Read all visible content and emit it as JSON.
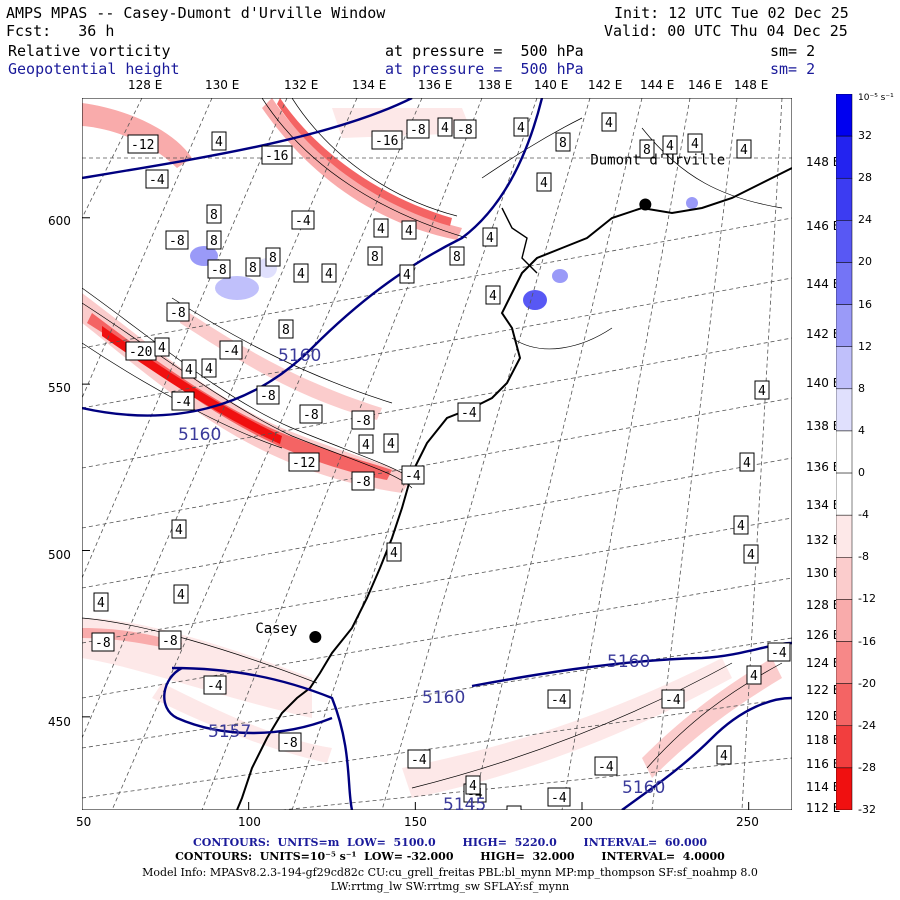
{
  "header": {
    "title": "AMPS MPAS -- Casey-Dumont d'Urville Window",
    "init": "Init: 12 UTC Tue 02 Dec 25",
    "fcst": "Fcst:   36 h",
    "valid": "Valid: 00 UTC Thu 04 Dec 25",
    "field1": "Relative vorticity",
    "field1_level": "at pressure =  500 hPa",
    "field1_sm": "sm= 2",
    "field2": "Geopotential height",
    "field2_level": "at pressure =  500 hPa",
    "field2_sm": "sm= 2"
  },
  "top_longitudes": [
    "128 E",
    "130 E",
    "132 E",
    "134 E",
    "136 E",
    "138 E",
    "140 E",
    "142 E",
    "144 E",
    "146 E",
    "148 E"
  ],
  "right_longitudes": [
    "148 E",
    "146 E",
    "144 E",
    "142 E",
    "140 E",
    "138 E",
    "136 E",
    "134 E",
    "132 E",
    "130 E",
    "128 E",
    "126 E",
    "124 E",
    "122 E",
    "120 E",
    "118 E",
    "116 E",
    "114 E",
    "112 E"
  ],
  "x_axis": {
    "ticks": [
      "50",
      "100",
      "150",
      "200",
      "250"
    ],
    "values": [
      50,
      100,
      150,
      200,
      250
    ],
    "range": [
      50,
      263
    ]
  },
  "y_axis": {
    "ticks": [
      "600",
      "550",
      "500",
      "450"
    ],
    "values": [
      600,
      550,
      500,
      450
    ],
    "range": [
      422,
      636
    ]
  },
  "places": [
    {
      "name": "Casey",
      "x": 120,
      "y": 474
    },
    {
      "name": "Dumont d'Urville",
      "x": 219,
      "y": 604
    }
  ],
  "colorbar": {
    "unit": "10⁻⁵ s⁻¹",
    "labels": [
      "32",
      "28",
      "24",
      "20",
      "16",
      "12",
      "8",
      "4",
      "0",
      "-4",
      "-8",
      "-12",
      "-16",
      "-20",
      "-24",
      "-28",
      "-32"
    ],
    "colors": [
      "#0000f0",
      "#2323f0",
      "#3c3cf2",
      "#5858f4",
      "#7474f6",
      "#9a9af8",
      "#c0c0fb",
      "#e0e0fd",
      "#ffffff",
      "#ffffff",
      "#fde8e8",
      "#fbcccc",
      "#f9abab",
      "#f78888",
      "#f46464",
      "#f23e3e",
      "#f01010"
    ]
  },
  "height_labels": [
    "5160",
    "5160",
    "5160",
    "5160",
    "5160",
    "5157",
    "5145"
  ],
  "vort_labels": [
    "-12",
    "-16",
    "-16",
    "-8",
    "-8",
    "-4",
    "-4",
    "-8",
    "-8",
    "-20",
    "-8",
    "-4",
    "-8",
    "-8",
    "-8",
    "-12",
    "-8",
    "-4",
    "-4",
    "-4",
    "-8",
    "-8",
    "-4",
    "-8",
    "-4",
    "-4",
    "-4",
    "-4",
    "-4",
    "-4",
    "-4",
    "8",
    "8",
    "8",
    "8",
    "8",
    "8",
    "8",
    "8",
    "8",
    "4",
    "4",
    "4",
    "4",
    "4",
    "4",
    "4",
    "4",
    "4",
    "4",
    "4",
    "4",
    "4",
    "4",
    "4",
    "4",
    "4",
    "4",
    "4",
    "4",
    "4",
    "4",
    "4",
    "4",
    "4",
    "4",
    "4",
    "4",
    "4",
    "4",
    "4",
    "4"
  ],
  "footer": {
    "line1": "CONTOURS:  UNITS=m  LOW=  5100.0       HIGH=  5220.0       INTERVAL=  60.000",
    "line2": "CONTOURS:  UNITS=10⁻⁵ s⁻¹  LOW= -32.000       HIGH=  32.000       INTERVAL=  4.0000",
    "line3": "Model Info: MPASv8.2.3-194-gf29cd82c CU:cu_grell_freitas PBL:bl_mynn MP:mp_thompson SF:sf_noahmp 8.0",
    "line4": "LW:rrtmg_lw SW:rrtmg_sw SFLAY:sf_mynn"
  }
}
